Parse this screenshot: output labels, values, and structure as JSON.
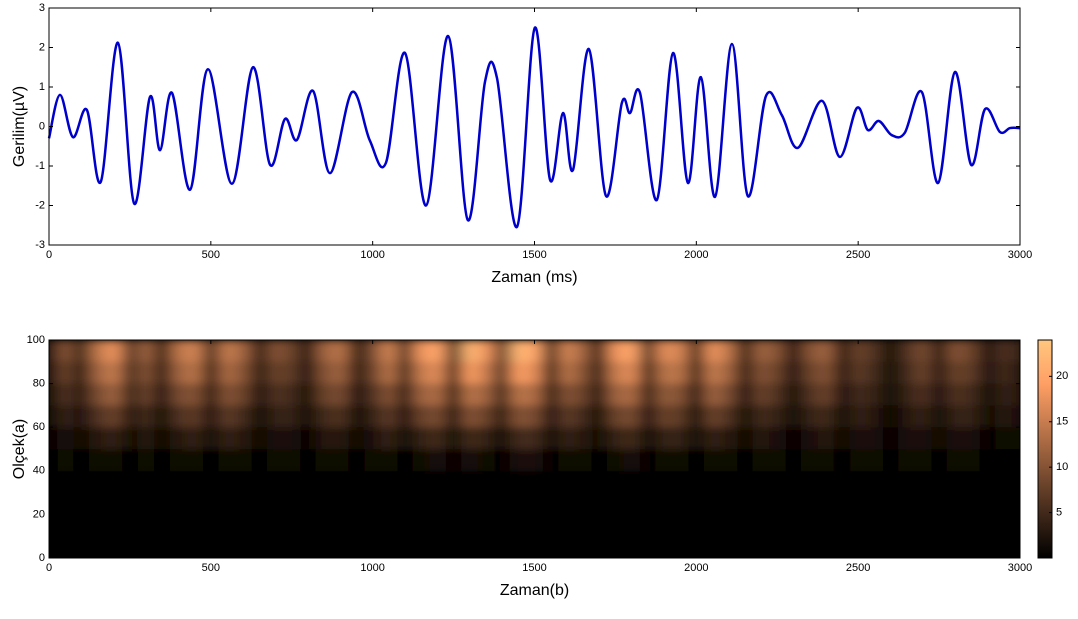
{
  "chart_data": [
    {
      "type": "line",
      "xlabel": "Zaman (ms)",
      "ylabel": "Gerilim(µV)",
      "color": "#0000cc",
      "xlim": [
        0,
        3000
      ],
      "ylim": [
        -3,
        3
      ],
      "xticks": [
        0,
        500,
        1000,
        1500,
        2000,
        2500,
        3000
      ],
      "yticks": [
        -3,
        -2,
        -1,
        0,
        1,
        2,
        3
      ],
      "x": [
        0,
        34,
        74,
        117,
        160,
        213,
        263,
        312,
        343,
        380,
        436,
        491,
        565,
        630,
        683,
        729,
        766,
        816,
        868,
        936,
        991,
        1041,
        1100,
        1165,
        1233,
        1294,
        1347,
        1384,
        1446,
        1501,
        1548,
        1588,
        1619,
        1668,
        1721,
        1770,
        1795,
        1826,
        1878,
        1928,
        1974,
        2014,
        2058,
        2110,
        2159,
        2215,
        2264,
        2314,
        2388,
        2443,
        2496,
        2530,
        2564,
        2604,
        2644,
        2697,
        2747,
        2799,
        2849,
        2892,
        2938,
        2969,
        3000
      ],
      "values": [
        -0.3,
        0.8,
        -0.27,
        0.42,
        -1.4,
        2.12,
        -1.95,
        0.75,
        -0.6,
        0.85,
        -1.6,
        1.45,
        -1.45,
        1.5,
        -0.97,
        0.19,
        -0.34,
        0.9,
        -1.18,
        0.87,
        -0.35,
        -0.92,
        1.86,
        -2.0,
        2.29,
        -2.37,
        1.13,
        1.23,
        -2.54,
        2.5,
        -1.35,
        0.34,
        -1.1,
        1.96,
        -1.76,
        0.6,
        0.34,
        0.85,
        -1.86,
        1.86,
        -1.43,
        1.25,
        -1.78,
        2.09,
        -1.76,
        0.77,
        0.29,
        -0.54,
        0.65,
        -0.77,
        0.47,
        -0.09,
        0.14,
        -0.22,
        -0.16,
        0.87,
        -1.43,
        1.38,
        -0.97,
        0.44,
        -0.14,
        -0.04,
        -0.04
      ]
    },
    {
      "type": "heatmap",
      "xlabel": "Zaman(b)",
      "ylabel": "Olçek(a)",
      "colormap": "copper",
      "xlim": [
        0,
        3000
      ],
      "ylim": [
        0,
        100
      ],
      "xticks": [
        0,
        500,
        1000,
        1500,
        2000,
        2500,
        3000
      ],
      "yticks": [
        0,
        20,
        40,
        60,
        80,
        100
      ],
      "clim": [
        0,
        24
      ],
      "cticks": [
        5,
        10,
        15,
        20
      ],
      "x": [
        0,
        50,
        100,
        150,
        200,
        250,
        300,
        350,
        400,
        450,
        500,
        550,
        600,
        650,
        700,
        750,
        800,
        850,
        900,
        950,
        1000,
        1050,
        1100,
        1150,
        1200,
        1250,
        1300,
        1350,
        1400,
        1450,
        1500,
        1550,
        1600,
        1650,
        1700,
        1750,
        1800,
        1850,
        1900,
        1950,
        2000,
        2050,
        2100,
        2150,
        2200,
        2250,
        2300,
        2350,
        2400,
        2450,
        2500,
        2550,
        2600,
        2650,
        2700,
        2750,
        2800,
        2850,
        2900,
        2950,
        3000
      ],
      "y": [
        95,
        85,
        75,
        65,
        55,
        45
      ],
      "z": [
        [
          2,
          10,
          4,
          14,
          18,
          6,
          12,
          3,
          14,
          16,
          4,
          15,
          12,
          3,
          10,
          8,
          2,
          12,
          14,
          3,
          9,
          16,
          5,
          18,
          20,
          4,
          22,
          18,
          6,
          22,
          20,
          4,
          16,
          12,
          3,
          18,
          20,
          4,
          17,
          16,
          3,
          18,
          14,
          3,
          12,
          10,
          2,
          10,
          12,
          3,
          8,
          6,
          1,
          6,
          9,
          3,
          10,
          8,
          2,
          6,
          4
        ],
        [
          2,
          8,
          3,
          12,
          15,
          5,
          10,
          3,
          12,
          14,
          3,
          13,
          10,
          3,
          8,
          7,
          2,
          10,
          12,
          3,
          8,
          14,
          4,
          15,
          17,
          3,
          19,
          15,
          5,
          19,
          17,
          3,
          14,
          10,
          3,
          15,
          17,
          3,
          14,
          14,
          3,
          15,
          12,
          3,
          10,
          8,
          2,
          8,
          10,
          3,
          7,
          5,
          1,
          5,
          8,
          3,
          8,
          7,
          2,
          5,
          3
        ],
        [
          1,
          6,
          3,
          9,
          12,
          4,
          8,
          2,
          9,
          10,
          3,
          10,
          8,
          2,
          6,
          5,
          1,
          8,
          9,
          2,
          6,
          10,
          3,
          12,
          13,
          3,
          14,
          12,
          4,
          14,
          13,
          3,
          10,
          8,
          2,
          12,
          13,
          3,
          11,
          10,
          2,
          12,
          9,
          2,
          8,
          6,
          1,
          6,
          8,
          2,
          5,
          4,
          1,
          4,
          6,
          2,
          6,
          5,
          1,
          4,
          3
        ],
        [
          1,
          4,
          2,
          6,
          8,
          3,
          5,
          1,
          6,
          7,
          2,
          7,
          5,
          1,
          4,
          4,
          1,
          5,
          6,
          1,
          4,
          7,
          2,
          8,
          9,
          2,
          10,
          8,
          3,
          10,
          9,
          2,
          7,
          5,
          1,
          8,
          9,
          2,
          8,
          7,
          1,
          8,
          6,
          1,
          5,
          4,
          1,
          4,
          5,
          1,
          4,
          3,
          0,
          3,
          4,
          1,
          4,
          4,
          1,
          3,
          2
        ],
        [
          0,
          2,
          1,
          3,
          4,
          1,
          3,
          1,
          3,
          4,
          1,
          4,
          3,
          1,
          2,
          2,
          0,
          3,
          3,
          1,
          2,
          4,
          1,
          4,
          5,
          1,
          5,
          4,
          1,
          5,
          5,
          1,
          4,
          3,
          1,
          4,
          5,
          1,
          4,
          4,
          1,
          4,
          3,
          1,
          3,
          2,
          0,
          2,
          3,
          1,
          2,
          2,
          0,
          2,
          2,
          1,
          2,
          2,
          0,
          1,
          1
        ],
        [
          0,
          1,
          0,
          1,
          1,
          0,
          1,
          0,
          1,
          1,
          0,
          1,
          1,
          0,
          1,
          1,
          0,
          1,
          1,
          0,
          1,
          1,
          0,
          1,
          2,
          0,
          2,
          1,
          0,
          2,
          2,
          0,
          1,
          1,
          0,
          1,
          2,
          0,
          1,
          1,
          0,
          1,
          1,
          0,
          1,
          1,
          0,
          1,
          1,
          0,
          1,
          1,
          0,
          1,
          1,
          0,
          1,
          1,
          0,
          0,
          0
        ]
      ]
    }
  ]
}
